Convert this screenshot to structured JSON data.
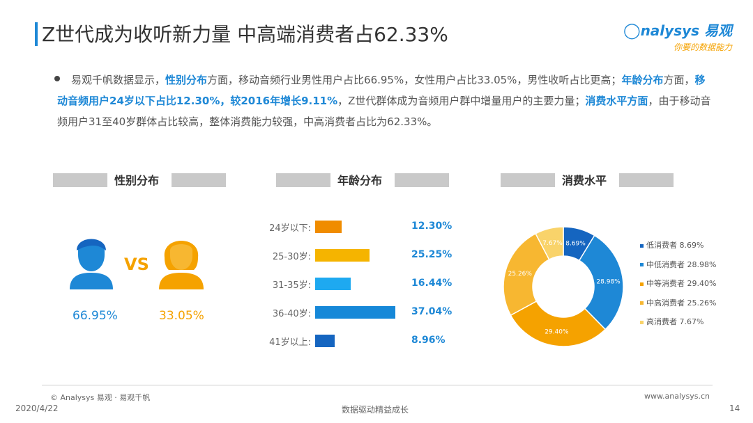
{
  "header": {
    "title": "Z世代成为收听新力量 中高端消费者占62.33%",
    "logo_main": "nalysys 易观",
    "logo_sub": "你要的数据能力"
  },
  "summary": {
    "p1": "易观千帆数据显示，",
    "h1": "性别分布",
    "p2": "方面，移动音频行业男性用户占比66.95%，女性用户占比33.05%，男性收听占比更高；",
    "h2": "年龄分布",
    "p3": "方面，",
    "h3": "移动音频用户24岁以下占比12.30%，较2016年增长9.11%",
    "p4": "，Z世代群体成为音频用户群中增量用户的主要力量；",
    "h4": "消费水平方面",
    "p5": "，由于移动音频用户31至40岁群体占比较高，整体消费能力较强，中高消费者占比为62.33%。"
  },
  "sections": {
    "gender": "性别分布",
    "age": "年龄分布",
    "consumption": "消费水平"
  },
  "gender": {
    "male_pct": "66.95%",
    "female_pct": "33.05%",
    "vs": "VS"
  },
  "chart_data": [
    {
      "type": "bar",
      "orientation": "horizontal",
      "categories": [
        "24岁以下:",
        "25-30岁:",
        "31-35岁:",
        "36-40岁:",
        "41岁以上:"
      ],
      "values": [
        12.3,
        25.25,
        16.44,
        37.04,
        8.96
      ],
      "value_labels": [
        "12.30%",
        "25.25%",
        "16.44%",
        "37.04%",
        "8.96%"
      ],
      "colors": [
        "#f08c00",
        "#f5b400",
        "#1ea9f0",
        "#1688d8",
        "#1565c0"
      ]
    },
    {
      "type": "pie",
      "donut": true,
      "categories": [
        "低消费者",
        "中低消费者",
        "中等消费者",
        "中高消费者",
        "高消费者"
      ],
      "values": [
        8.69,
        28.98,
        29.4,
        25.26,
        7.67
      ],
      "value_labels": [
        "8.69%",
        "28.98%",
        "29.40%",
        "25.26%",
        "7.67%"
      ],
      "legend": [
        "低消费者 8.69%",
        "中低消费者 28.98%",
        "中等消费者 29.40%",
        "中高消费者 25.26%",
        "高消费者 7.67%"
      ],
      "colors": [
        "#1565c0",
        "#1e88d6",
        "#f5a200",
        "#f7b731",
        "#f9d36a"
      ],
      "legend_position": "right"
    }
  ],
  "footer": {
    "copyright": "© Analysys 易观 · 易观千帆",
    "date": "2020/4/22",
    "slogan": "数据驱动精益成长",
    "website": "www.analysys.cn",
    "page": "14"
  }
}
